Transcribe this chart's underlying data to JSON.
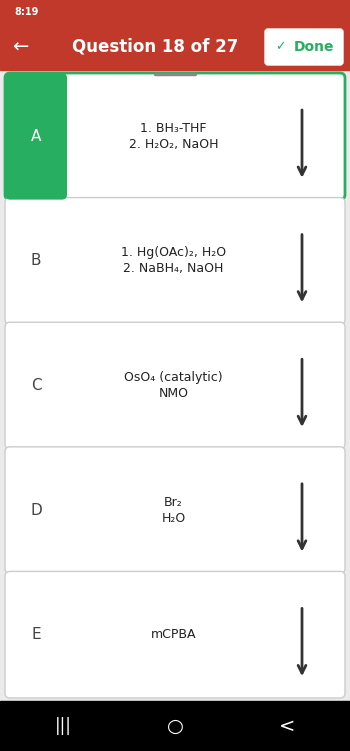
{
  "title": "Question 18 of 27",
  "status_bar_text": "8:19",
  "status_bar_bg": "#c0392b",
  "header_bg": "#c0392b",
  "header_text_color": "#ffffff",
  "done_btn_text": "Done",
  "done_btn_color": "#27ae60",
  "body_bg": "#ebebeb",
  "card_bg": "#ffffff",
  "card_border_normal": "#cccccc",
  "card_border_selected": "#27ae60",
  "arrow_color": "#333333",
  "label_color": "#222222",
  "options": [
    {
      "letter": "A",
      "letter_bg": "#27ae60",
      "letter_color": "#ffffff",
      "lines": [
        "1. BH₃-THF",
        "2. H₂O₂, NaOH"
      ],
      "selected": true
    },
    {
      "letter": "B",
      "letter_bg": "#ffffff",
      "letter_color": "#444444",
      "lines": [
        "1. Hg(OAc)₂, H₂O",
        "2. NaBH₄, NaOH"
      ],
      "selected": false
    },
    {
      "letter": "C",
      "letter_bg": "#ffffff",
      "letter_color": "#444444",
      "lines": [
        "OsO₄ (catalytic)",
        "NMO"
      ],
      "selected": false
    },
    {
      "letter": "D",
      "letter_bg": "#ffffff",
      "letter_color": "#444444",
      "lines": [
        "Br₂",
        "H₂O"
      ],
      "selected": false
    },
    {
      "letter": "E",
      "letter_bg": "#ffffff",
      "letter_color": "#444444",
      "lines": [
        "mCPBA"
      ],
      "selected": false
    }
  ],
  "nav_bar_bg": "#000000"
}
